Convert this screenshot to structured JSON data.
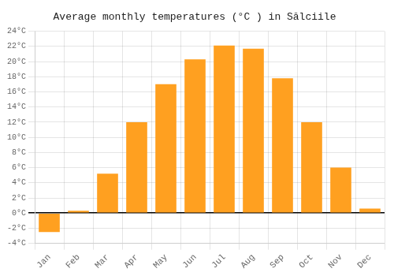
{
  "chart_data": {
    "type": "bar",
    "title": "Average monthly temperatures (°C ) in Sălciile",
    "categories": [
      "Jan",
      "Feb",
      "Mar",
      "Apr",
      "May",
      "Jun",
      "Jul",
      "Aug",
      "Sep",
      "Oct",
      "Nov",
      "Dec"
    ],
    "values": [
      -2.5,
      0.3,
      5.2,
      12.0,
      17.0,
      20.3,
      22.1,
      21.7,
      17.8,
      12.0,
      6.0,
      0.6
    ],
    "color": "#FFA020",
    "ylim": [
      -4,
      24
    ],
    "yticks": [
      {
        "value": -4,
        "label": "-4°C"
      },
      {
        "value": -2,
        "label": "-2°C"
      },
      {
        "value": 0,
        "label": "0°C"
      },
      {
        "value": 2,
        "label": "2°C"
      },
      {
        "value": 4,
        "label": "4°C"
      },
      {
        "value": 6,
        "label": "6°C"
      },
      {
        "value": 8,
        "label": "8°C"
      },
      {
        "value": 10,
        "label": "10°C"
      },
      {
        "value": 12,
        "label": "12°C"
      },
      {
        "value": 14,
        "label": "14°C"
      },
      {
        "value": 16,
        "label": "16°C"
      },
      {
        "value": 18,
        "label": "18°C"
      },
      {
        "value": 20,
        "label": "20°C"
      },
      {
        "value": 22,
        "label": "22°C"
      },
      {
        "value": 24,
        "label": "24°C"
      }
    ],
    "grid": true
  }
}
